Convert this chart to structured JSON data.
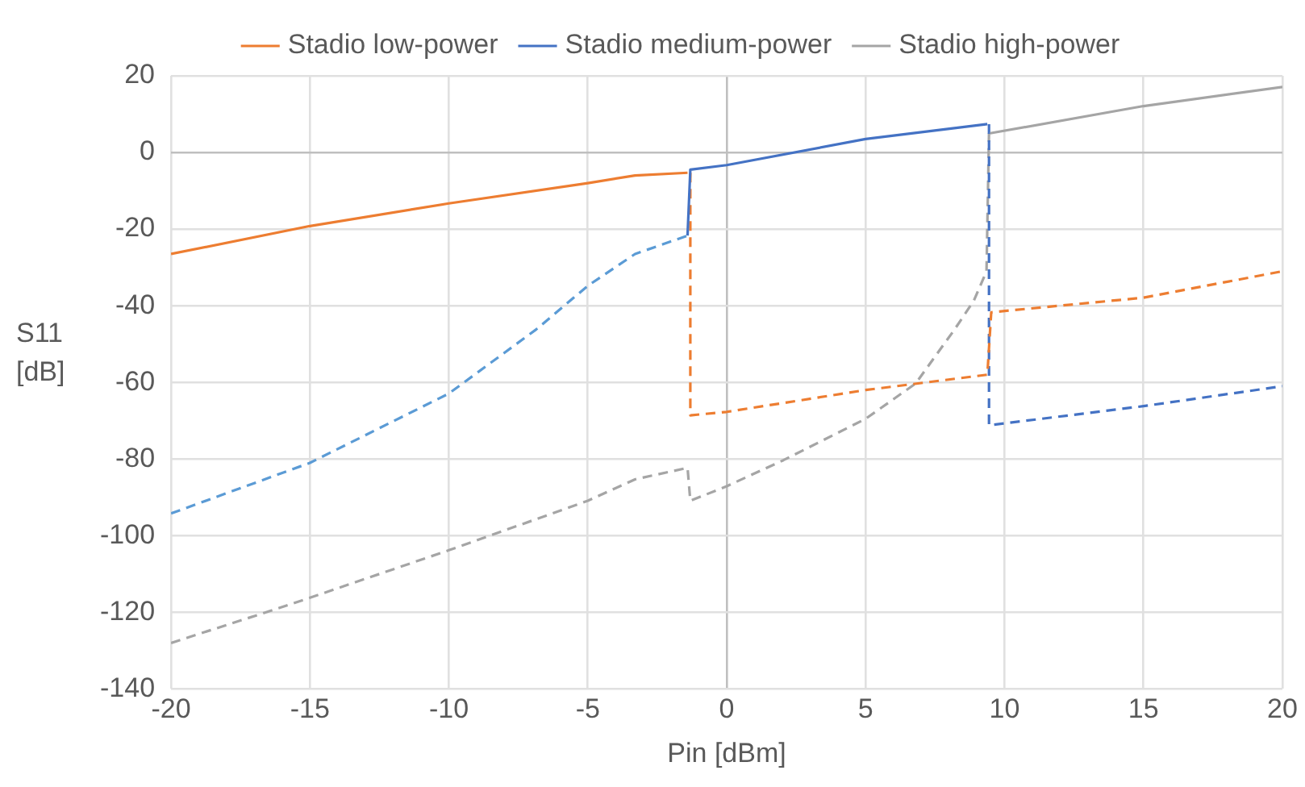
{
  "chart_data": {
    "type": "line",
    "xlabel": "Pin [dBm]",
    "ylabel": "S11 [dB]",
    "xlim": [
      -20,
      20
    ],
    "xticks": [
      -20,
      -15,
      -10,
      -5,
      0,
      5,
      10,
      15,
      20
    ],
    "ylim": [
      -140,
      20
    ],
    "yticks": [
      -140,
      -120,
      -100,
      -80,
      -60,
      -40,
      -20,
      0,
      20
    ],
    "grid": true,
    "legend": "top",
    "marker": "none",
    "series": [
      {
        "name": "Stadio low-power",
        "color": "#ed7d31",
        "line_style": "solid",
        "x": [
          -20,
          -15,
          -10,
          -5,
          -3.3,
          -1.41
        ],
        "values": [
          -26.5,
          -19.2,
          -13.3,
          -8,
          -6,
          -5.3
        ]
      },
      {
        "name": "Stadio medium-power",
        "color": "#4472c4",
        "line_style": "solid",
        "x": [
          -1.41,
          -1.31,
          0,
          5,
          9.38
        ],
        "values": [
          -21.7,
          -4.5,
          -3.3,
          3.5,
          7.4
        ]
      },
      {
        "name": "Stadio high-power",
        "color": "#a5a5a5",
        "line_style": "solid",
        "x": [
          9.48,
          15,
          20
        ],
        "values": [
          5,
          12.1,
          17.1
        ]
      },
      {
        "color": "#ed7d31",
        "line_style": "dashed",
        "x": [
          -1.31,
          -1.31,
          0,
          5,
          9.38,
          9.52,
          15,
          20
        ],
        "values": [
          -5.3,
          -68.6,
          -67.7,
          -62,
          -58,
          -41.7,
          -37.9,
          -31
        ]
      },
      {
        "color": "#5b9bd5",
        "line_style": "dashed",
        "x": [
          -20,
          -15,
          -10,
          -6.86,
          -5,
          -3.3,
          -1.41
        ],
        "values": [
          -94.2,
          -81,
          -62.9,
          -46.2,
          -34.8,
          -26.5,
          -21.7
        ]
      },
      {
        "color": "#4472c4",
        "line_style": "dashed",
        "x": [
          9.44,
          9.44,
          15,
          20
        ],
        "values": [
          7.4,
          -71.2,
          -66.2,
          -61
        ]
      },
      {
        "color": "#a5a5a5",
        "line_style": "dashed",
        "x": [
          -20,
          -16.8,
          -15,
          -10,
          -5,
          -3.3,
          -1.41,
          -1.31,
          0,
          2.04,
          5,
          6.8,
          8.2,
          8.9,
          9.35,
          9.44
        ],
        "values": [
          -128,
          -120.5,
          -116.2,
          -103.8,
          -90.9,
          -85.3,
          -82.3,
          -90.9,
          -87.1,
          -80.3,
          -69.5,
          -60.3,
          -46.2,
          -38.6,
          -31,
          5
        ]
      }
    ]
  }
}
